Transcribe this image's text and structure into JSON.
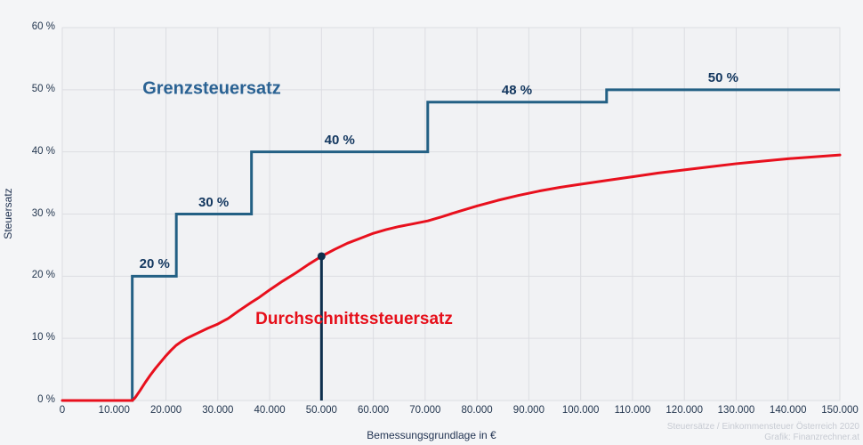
{
  "colors": {
    "outer_bg": "#f4f5f7",
    "plot_bg": "#f1f2f4",
    "plot_border": "#e2e3e8",
    "grid": "#dcdde2",
    "step_line": "#236084",
    "marker": "#0e2f4d",
    "avg_line": "#e8101d",
    "tick_text": "#23364f"
  },
  "footer": {
    "line1": "Steuersätze / Einkommensteuer Österreich 2020",
    "line2": "Grafik: Finanzrechner.at"
  },
  "chart_data": {
    "type": "line",
    "title": "",
    "xlabel": "Bemessungsgrundlage in €",
    "ylabel": "Steuersatz",
    "xlim": [
      0,
      150000
    ],
    "ylim": [
      0,
      60
    ],
    "grid": true,
    "x_tick_values": [
      0,
      10000,
      20000,
      30000,
      40000,
      50000,
      60000,
      70000,
      80000,
      90000,
      100000,
      110000,
      120000,
      130000,
      140000,
      150000
    ],
    "x_tick_labels": [
      "0",
      "10.000",
      "20.000",
      "30.000",
      "40.000",
      "50.000",
      "60.000",
      "70.000",
      "80.000",
      "90.000",
      "100.000",
      "110.000",
      "120.000",
      "130.000",
      "140.000",
      "150.000"
    ],
    "y_tick_values": [
      0,
      10,
      20,
      30,
      40,
      50,
      60
    ],
    "y_tick_labels": [
      "0 %",
      "10 %",
      "20 %",
      "30 %",
      "40 %",
      "50 %",
      "60 %"
    ],
    "series": [
      {
        "name": "Grenzsteuersatz",
        "type": "step",
        "color": "#236084",
        "brackets": [
          {
            "from": 0,
            "to": 13500,
            "rate": 0
          },
          {
            "from": 13500,
            "to": 22000,
            "rate": 20
          },
          {
            "from": 22000,
            "to": 36500,
            "rate": 30
          },
          {
            "from": 36500,
            "to": 70500,
            "rate": 40
          },
          {
            "from": 70500,
            "to": 105000,
            "rate": 48
          },
          {
            "from": 105000,
            "to": 150000,
            "rate": 50
          }
        ]
      },
      {
        "name": "Durchschnittssteuersatz",
        "type": "smooth",
        "color": "#e8101d",
        "points": [
          [
            0,
            0
          ],
          [
            5000,
            0
          ],
          [
            10000,
            0
          ],
          [
            13500,
            0
          ],
          [
            14000,
            0.4
          ],
          [
            15000,
            1.6
          ],
          [
            16000,
            2.9
          ],
          [
            17000,
            4.1
          ],
          [
            18000,
            5.2
          ],
          [
            19000,
            6.2
          ],
          [
            20000,
            7.2
          ],
          [
            21000,
            8.1
          ],
          [
            22000,
            8.9
          ],
          [
            23000,
            9.5
          ],
          [
            24000,
            10.0
          ],
          [
            25000,
            10.4
          ],
          [
            26500,
            11.0
          ],
          [
            28000,
            11.6
          ],
          [
            30000,
            12.3
          ],
          [
            32000,
            13.2
          ],
          [
            34000,
            14.4
          ],
          [
            36500,
            15.8
          ],
          [
            38000,
            16.6
          ],
          [
            40000,
            17.8
          ],
          [
            42500,
            19.2
          ],
          [
            45000,
            20.5
          ],
          [
            47500,
            21.9
          ],
          [
            50000,
            23.2
          ],
          [
            52500,
            24.3
          ],
          [
            55000,
            25.3
          ],
          [
            57500,
            26.1
          ],
          [
            60000,
            26.9
          ],
          [
            62500,
            27.5
          ],
          [
            65000,
            28.0
          ],
          [
            67500,
            28.4
          ],
          [
            70500,
            28.9
          ],
          [
            73000,
            29.5
          ],
          [
            76000,
            30.3
          ],
          [
            80000,
            31.3
          ],
          [
            84000,
            32.2
          ],
          [
            88000,
            33.0
          ],
          [
            92000,
            33.7
          ],
          [
            96000,
            34.3
          ],
          [
            100000,
            34.8
          ],
          [
            105000,
            35.4
          ],
          [
            110000,
            36.0
          ],
          [
            115000,
            36.6
          ],
          [
            120000,
            37.1
          ],
          [
            125000,
            37.6
          ],
          [
            130000,
            38.1
          ],
          [
            135000,
            38.5
          ],
          [
            140000,
            38.9
          ],
          [
            145000,
            39.2
          ],
          [
            150000,
            39.5
          ]
        ]
      }
    ],
    "marker": {
      "x": 50000,
      "y": 23.2
    },
    "step_labels": [
      {
        "text": "20 %",
        "x": 17800,
        "rate": 20
      },
      {
        "text": "30 %",
        "x": 29200,
        "rate": 30
      },
      {
        "text": "40 %",
        "x": 53500,
        "rate": 40
      },
      {
        "text": "48 %",
        "x": 87700,
        "rate": 48
      },
      {
        "text": "50 %",
        "x": 127500,
        "rate": 50
      }
    ]
  }
}
